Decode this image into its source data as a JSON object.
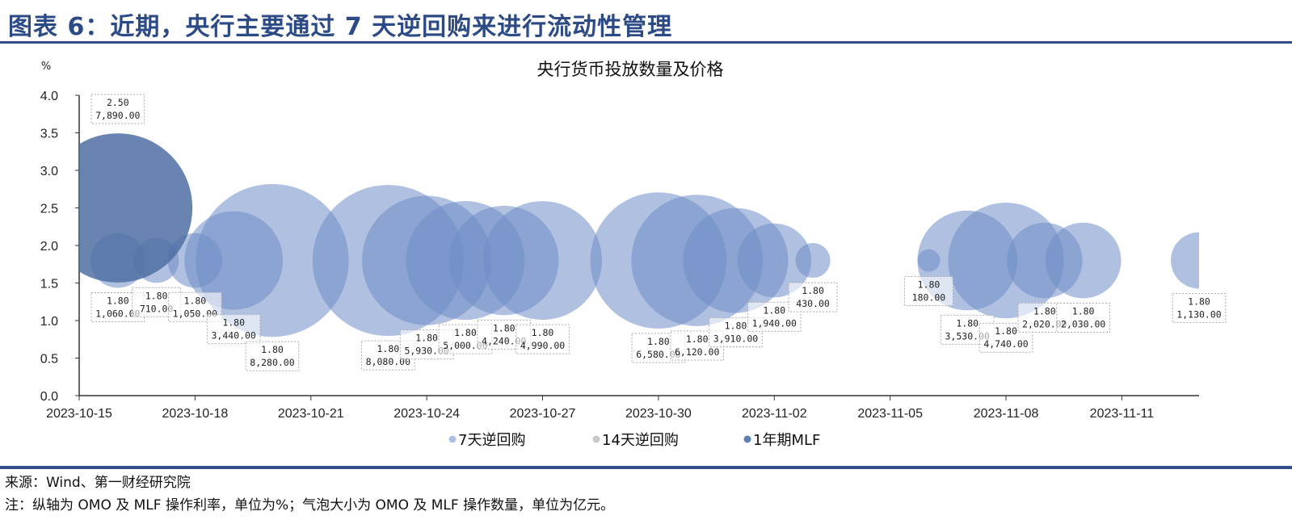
{
  "header": {
    "title": "图表 6：近期，央行主要通过 7 天逆回购来进行流动性管理"
  },
  "footer": {
    "source": "来源：Wind、第一财经研究院",
    "note": "注：纵轴为 OMO 及 MLF 操作利率，单位为%；气泡大小为 OMO 及 MLF 操作数量，单位为亿元。"
  },
  "chart_data": {
    "type": "bubble",
    "title": "央行货币投放数量及价格",
    "ylabel": "%",
    "ylim": [
      0,
      4.0
    ],
    "yticks": [
      "0.0",
      "0.5",
      "1.0",
      "1.5",
      "2.0",
      "2.5",
      "3.0",
      "3.5",
      "4.0"
    ],
    "xlim": [
      "2023-10-15",
      "2023-11-13"
    ],
    "xticks": [
      "2023-10-15",
      "2023-10-18",
      "2023-10-21",
      "2023-10-24",
      "2023-10-27",
      "2023-10-30",
      "2023-11-02",
      "2023-11-05",
      "2023-11-08",
      "2023-11-11"
    ],
    "legend_position": "bottom",
    "size_unit": "亿元",
    "series": [
      {
        "name": "7天逆回购",
        "color": "#6f8cc7",
        "points": [
          {
            "date": "2023-10-16",
            "rate": 1.8,
            "amount": 1060
          },
          {
            "date": "2023-10-17",
            "rate": 1.8,
            "amount": 710
          },
          {
            "date": "2023-10-18",
            "rate": 1.8,
            "amount": 1050
          },
          {
            "date": "2023-10-19",
            "rate": 1.8,
            "amount": 3440
          },
          {
            "date": "2023-10-20",
            "rate": 1.8,
            "amount": 8280
          },
          {
            "date": "2023-10-23",
            "rate": 1.8,
            "amount": 8080
          },
          {
            "date": "2023-10-24",
            "rate": 1.8,
            "amount": 5930
          },
          {
            "date": "2023-10-25",
            "rate": 1.8,
            "amount": 5000
          },
          {
            "date": "2023-10-26",
            "rate": 1.8,
            "amount": 4240
          },
          {
            "date": "2023-10-27",
            "rate": 1.8,
            "amount": 4990
          },
          {
            "date": "2023-10-30",
            "rate": 1.8,
            "amount": 6580
          },
          {
            "date": "2023-10-31",
            "rate": 1.8,
            "amount": 6120
          },
          {
            "date": "2023-11-01",
            "rate": 1.8,
            "amount": 3910
          },
          {
            "date": "2023-11-02",
            "rate": 1.8,
            "amount": 1940
          },
          {
            "date": "2023-11-03",
            "rate": 1.8,
            "amount": 430
          },
          {
            "date": "2023-11-06",
            "rate": 1.8,
            "amount": 180
          },
          {
            "date": "2023-11-07",
            "rate": 1.8,
            "amount": 3530
          },
          {
            "date": "2023-11-08",
            "rate": 1.8,
            "amount": 4740
          },
          {
            "date": "2023-11-09",
            "rate": 1.8,
            "amount": 2020
          },
          {
            "date": "2023-11-10",
            "rate": 1.8,
            "amount": 2030
          },
          {
            "date": "2023-11-13",
            "rate": 1.8,
            "amount": 1130
          }
        ]
      },
      {
        "name": "14天逆回购",
        "color": "#bfbfbf",
        "points": []
      },
      {
        "name": "1年期MLF",
        "color": "#4f6ea3",
        "points": [
          {
            "date": "2023-10-16",
            "rate": 2.5,
            "amount": 7890
          }
        ]
      }
    ]
  }
}
